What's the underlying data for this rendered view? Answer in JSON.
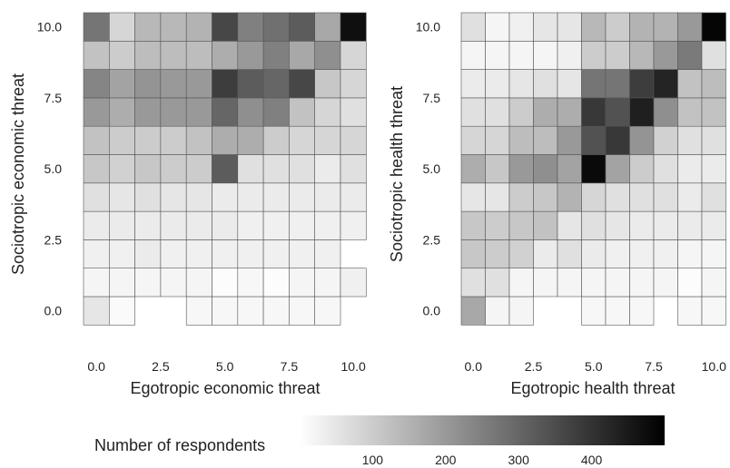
{
  "chart_data": {
    "type": "heatmap",
    "colorscale": {
      "title": "Number of respondents",
      "ticks": [
        100,
        200,
        300,
        400
      ],
      "range": [
        0,
        500
      ],
      "low_color": "#ffffff",
      "high_color": "#000000"
    },
    "panels": [
      {
        "xlabel": "Egotropic economic threat",
        "ylabel": "Sociotropic economic threat",
        "xticks": [
          "0.0",
          "2.5",
          "5.0",
          "7.5",
          "10.0"
        ],
        "yticks": [
          "0.0",
          "2.5",
          "5.0",
          "7.5",
          "10.0"
        ],
        "x_values": [
          0,
          1,
          2,
          3,
          4,
          5,
          6,
          7,
          8,
          9,
          10
        ],
        "y_values": [
          0,
          1,
          2,
          3,
          4,
          5,
          6,
          7,
          8,
          9,
          10
        ],
        "counts": [
          [
            50,
            10,
            null,
            null,
            15,
            15,
            15,
            15,
            15,
            15,
            null
          ],
          [
            20,
            20,
            20,
            20,
            20,
            5,
            15,
            5,
            20,
            20,
            30
          ],
          [
            30,
            30,
            40,
            30,
            30,
            30,
            30,
            30,
            30,
            30,
            null
          ],
          [
            40,
            40,
            40,
            40,
            40,
            40,
            30,
            30,
            30,
            30,
            30
          ],
          [
            60,
            50,
            60,
            50,
            50,
            40,
            40,
            40,
            40,
            40,
            40
          ],
          [
            110,
            90,
            110,
            100,
            100,
            320,
            60,
            60,
            60,
            40,
            60
          ],
          [
            120,
            100,
            100,
            100,
            120,
            160,
            160,
            100,
            80,
            80,
            80
          ],
          [
            200,
            160,
            200,
            200,
            200,
            300,
            220,
            250,
            120,
            80,
            60
          ],
          [
            240,
            180,
            210,
            200,
            200,
            380,
            320,
            300,
            360,
            110,
            80
          ],
          [
            120,
            100,
            130,
            130,
            130,
            160,
            200,
            250,
            170,
            220,
            80
          ],
          [
            270,
            80,
            140,
            140,
            150,
            360,
            250,
            280,
            320,
            170,
            470
          ]
        ]
      },
      {
        "xlabel": "Egotropic health threat",
        "ylabel": "Sociotropic health threat",
        "xticks": [
          "0.0",
          "2.5",
          "5.0",
          "7.5",
          "10.0"
        ],
        "yticks": [
          "0.0",
          "2.5",
          "5.0",
          "7.5",
          "10.0"
        ],
        "x_values": [
          0,
          1,
          2,
          3,
          4,
          5,
          6,
          7,
          8,
          9,
          10
        ],
        "y_values": [
          0,
          1,
          2,
          3,
          4,
          5,
          6,
          7,
          8,
          9,
          10
        ],
        "counts": [
          [
            170,
            20,
            20,
            null,
            null,
            15,
            15,
            15,
            null,
            15,
            15
          ],
          [
            60,
            60,
            20,
            20,
            20,
            20,
            20,
            20,
            20,
            5,
            20
          ],
          [
            110,
            100,
            90,
            40,
            60,
            40,
            30,
            30,
            30,
            20,
            20
          ],
          [
            110,
            100,
            110,
            120,
            50,
            60,
            50,
            40,
            40,
            40,
            40
          ],
          [
            50,
            50,
            100,
            110,
            150,
            80,
            60,
            60,
            60,
            40,
            60
          ],
          [
            160,
            110,
            200,
            220,
            180,
            480,
            180,
            100,
            60,
            40,
            40
          ],
          [
            80,
            80,
            130,
            130,
            200,
            340,
            390,
            210,
            90,
            60,
            60
          ],
          [
            60,
            60,
            100,
            160,
            160,
            390,
            340,
            440,
            220,
            120,
            120
          ],
          [
            40,
            40,
            50,
            60,
            50,
            270,
            270,
            380,
            430,
            120,
            130
          ],
          [
            20,
            20,
            20,
            20,
            30,
            100,
            100,
            140,
            200,
            260,
            60
          ],
          [
            60,
            20,
            30,
            50,
            50,
            140,
            100,
            150,
            150,
            200,
            490
          ]
        ]
      }
    ]
  }
}
